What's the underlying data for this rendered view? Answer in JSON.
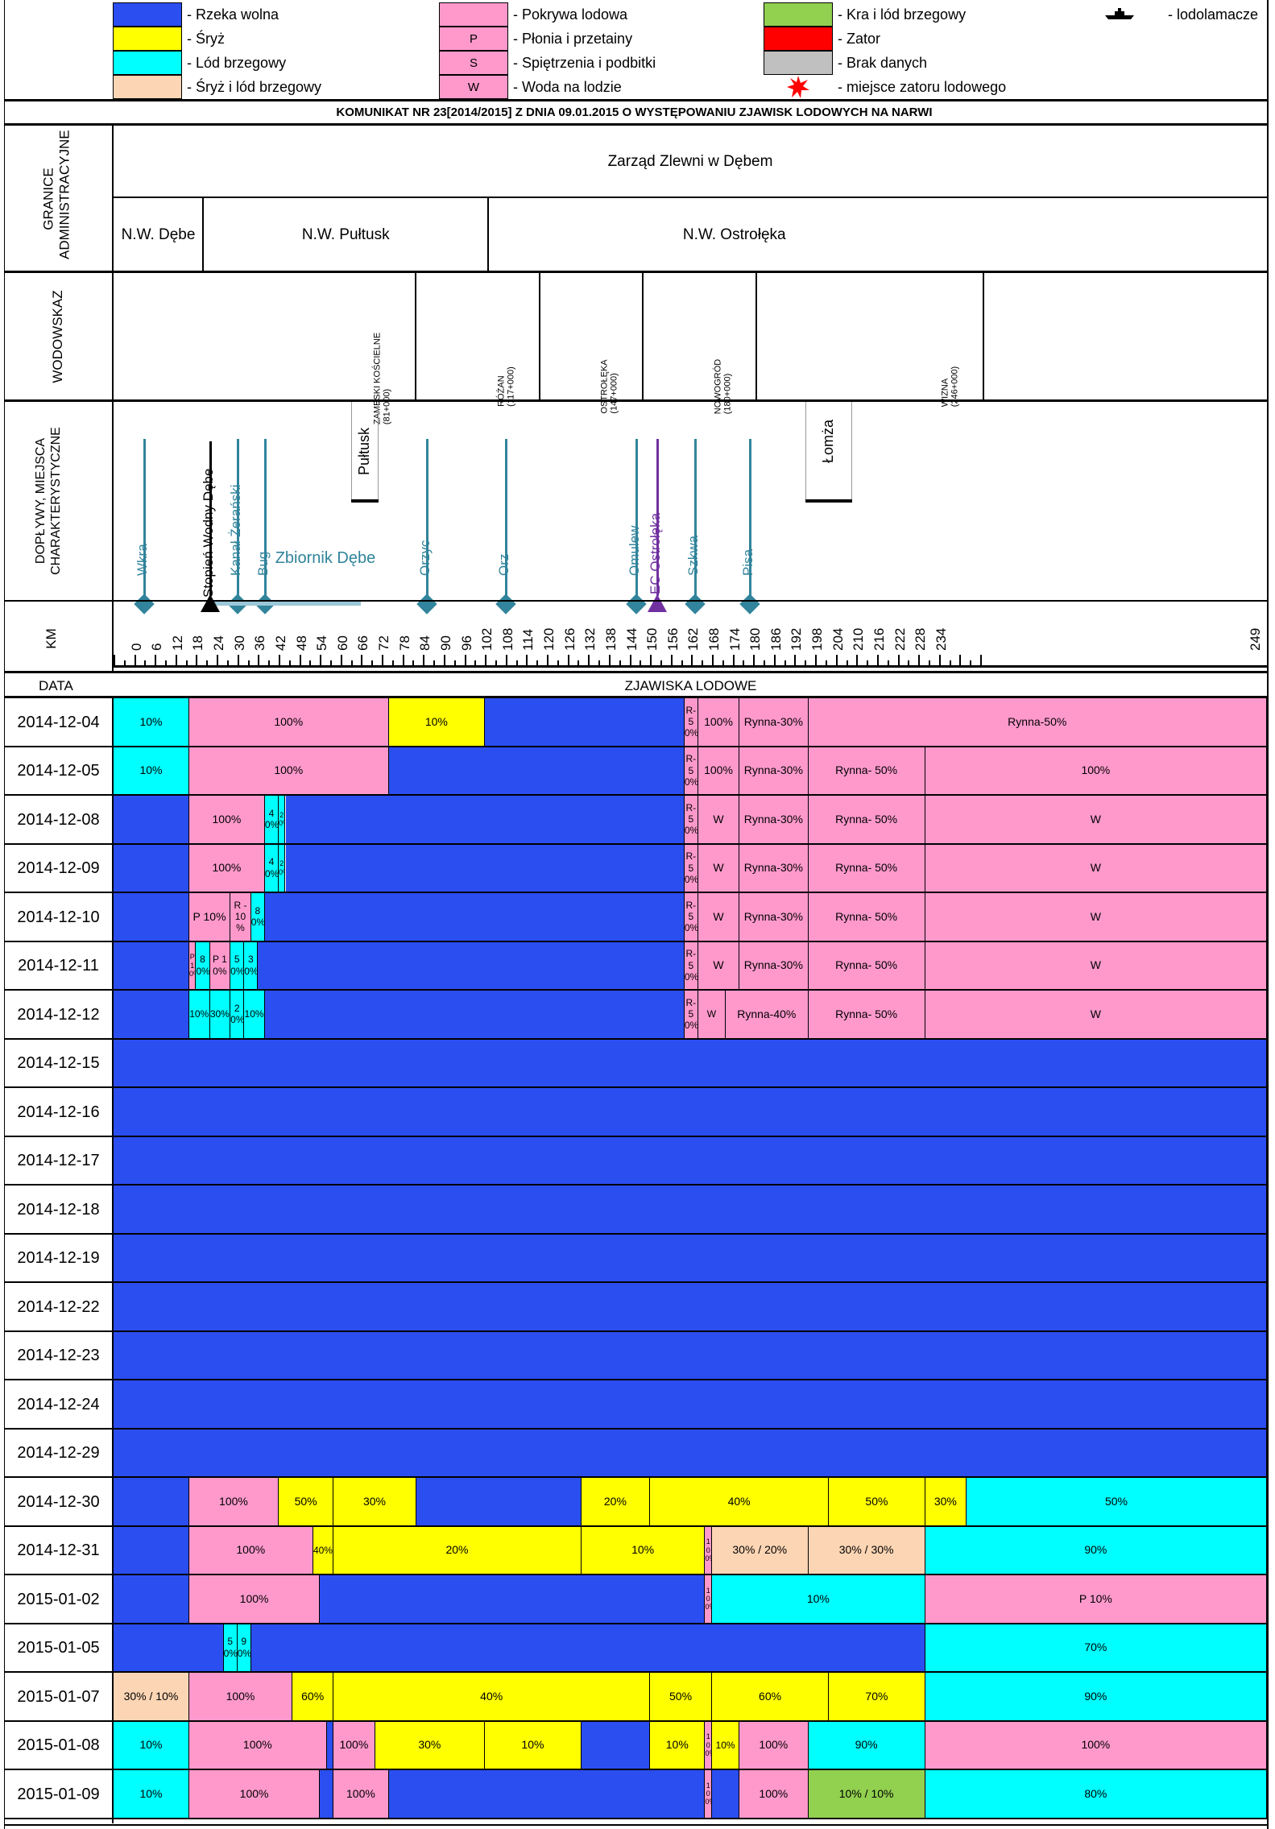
{
  "legend": {
    "items": [
      {
        "swatch": "#2b4ef0",
        "text": "- Rzeka wolna",
        "mark": ""
      },
      {
        "swatch": "#ffff00",
        "text": "- Śryż",
        "mark": ""
      },
      {
        "swatch": "#00ffff",
        "text": "- Lód brzegowy",
        "mark": ""
      },
      {
        "swatch": "#fcd5b4",
        "text": "- Śryż i lód brzegowy",
        "mark": ""
      },
      {
        "swatch": "#ff99cc",
        "text": "- Pokrywa lodowa",
        "mark": ""
      },
      {
        "swatch": "#ff99cc",
        "text": "- Płonia i przetainy",
        "mark": "P"
      },
      {
        "swatch": "#ff99cc",
        "text": "- Spiętrzenia i podbitki",
        "mark": "S"
      },
      {
        "swatch": "#ff99cc",
        "text": "- Woda na lodzie",
        "mark": "W"
      },
      {
        "swatch": "#92d050",
        "text": "- Kra i lód brzegowy",
        "mark": ""
      },
      {
        "swatch": "#ff0000",
        "text": "- Zator",
        "mark": ""
      },
      {
        "swatch": "#c0c0c0",
        "text": "- Brak danych",
        "mark": ""
      },
      {
        "swatch": "",
        "text": "- miejsce zatoru lodowego",
        "mark": "star-icon"
      },
      {
        "swatch": "",
        "text": "- lodolamacze",
        "mark": "icebreaker-icon"
      }
    ]
  },
  "title": "KOMUNIKAT NR 23[2014/2015] Z DNIA 09.01.2015 O WYSTĘPOWANIU ZJAWISK LODOWYCH NA NARWI",
  "headers": {
    "admin": "GRANICE ADMINISTRACYJNE",
    "gauge": "WODOWSKAZ",
    "features": "DOPŁYWY, MIEJSCA CHARAKTERYSTYCZNE",
    "km": "KM",
    "date": "DATA",
    "phenomena": "ZJAWISKA LODOWE"
  },
  "admin": {
    "top": "Zarząd Zlewni w Dębem",
    "units": [
      {
        "name": "N.W. Dębe",
        "km_from": -6,
        "km_to": 20
      },
      {
        "name": "N.W. Pułtusk",
        "km_from": 20,
        "km_to": 103
      },
      {
        "name": "N.W. Ostrołęka",
        "km_from": 103,
        "km_to": 246
      }
    ]
  },
  "gauges": [
    {
      "name": "ZAMBSKI KOŚCIELNE",
      "km_label": "(81+000)",
      "km": 81
    },
    {
      "name": "RÓŻAN",
      "km_label": "(117+000)",
      "km": 117
    },
    {
      "name": "OSTROŁĘKA",
      "km_label": "(147+000)",
      "km": 147
    },
    {
      "name": "NOWOGRÓD",
      "km_label": "(180+000)",
      "km": 180
    },
    {
      "name": "WIZNA",
      "km_label": "(246+000)",
      "km": 246
    }
  ],
  "features": {
    "tributaries": [
      {
        "name": "Wkra",
        "km": 3
      },
      {
        "name": "Kanał Żerański",
        "km": 30
      },
      {
        "name": "Bug",
        "km": 38
      },
      {
        "name": "Orzyc",
        "km": 85
      },
      {
        "name": "Orz",
        "km": 108
      },
      {
        "name": "Omulew",
        "km": 146
      },
      {
        "name": "Szkwa",
        "km": 163
      },
      {
        "name": "Pisa",
        "km": 179
      }
    ],
    "dam": {
      "name": "Stopień Wodny Dębe",
      "km": 22
    },
    "plant": {
      "name": "EC Ostrołęka",
      "km": 152
    },
    "reservoir": {
      "name": "Zbiornik Dębe",
      "km_from": 22,
      "km_to": 66
    },
    "cities": [
      {
        "name": "Pułtusk",
        "km": 67
      },
      {
        "name": "Łomża",
        "km": 202
      }
    ]
  },
  "km_axis": {
    "ticks": [
      0,
      6,
      12,
      18,
      24,
      30,
      36,
      42,
      48,
      54,
      60,
      66,
      72,
      78,
      84,
      90,
      96,
      102,
      108,
      114,
      120,
      126,
      132,
      138,
      144,
      150,
      156,
      162,
      168,
      174,
      180,
      186,
      192,
      198,
      204,
      210,
      216,
      222,
      228,
      234,
      249
    ],
    "min": -6,
    "max": 250
  },
  "colors": {
    "free": "#2b4ef0",
    "sryz": "#ffff00",
    "shore": "#00ffff",
    "sryz_shore": "#fcd5b4",
    "cover": "#ff99cc",
    "floe": "#92d050",
    "jam": "#ff0000",
    "nodata": "#c0c0c0",
    "tributary": "#31849b",
    "plant": "#7030a0"
  },
  "rows": [
    {
      "date": "2014-12-04",
      "segs": [
        [
          -6,
          16,
          "shore",
          "10%"
        ],
        [
          16,
          74,
          "cover",
          "100%"
        ],
        [
          74,
          102,
          "sryz",
          "10%"
        ],
        [
          102,
          160,
          "free",
          ""
        ],
        [
          160,
          164,
          "cover",
          "R-50%"
        ],
        [
          164,
          176,
          "cover",
          "100%"
        ],
        [
          176,
          196,
          "cover",
          "Rynna-30%"
        ],
        [
          196,
          244,
          "cover",
          "Rynna-50%"
        ]
      ]
    },
    {
      "date": "2014-12-05",
      "segs": [
        [
          -6,
          16,
          "shore",
          "10%"
        ],
        [
          16,
          74,
          "cover",
          "100%"
        ],
        [
          74,
          160,
          "free",
          ""
        ],
        [
          160,
          164,
          "cover",
          "R-50%"
        ],
        [
          164,
          176,
          "cover",
          "100%"
        ],
        [
          176,
          196,
          "cover",
          "Rynna-30%"
        ],
        [
          196,
          230,
          "cover",
          "Rynna- 50%"
        ],
        [
          230,
          244,
          "cover",
          "100%"
        ]
      ]
    },
    {
      "date": "2014-12-08",
      "segs": [
        [
          -6,
          16,
          "free",
          ""
        ],
        [
          16,
          38,
          "cover",
          "100%"
        ],
        [
          38,
          42,
          "shore",
          "40%"
        ],
        [
          42,
          44,
          "shore",
          "20%"
        ],
        [
          44,
          160,
          "free",
          ""
        ],
        [
          160,
          164,
          "cover",
          "R-50%"
        ],
        [
          164,
          176,
          "cover",
          "W"
        ],
        [
          176,
          196,
          "cover",
          "Rynna-30%"
        ],
        [
          196,
          230,
          "cover",
          "Rynna- 50%"
        ],
        [
          230,
          244,
          "cover",
          "W"
        ]
      ]
    },
    {
      "date": "2014-12-09",
      "segs": [
        [
          -6,
          16,
          "free",
          ""
        ],
        [
          16,
          38,
          "cover",
          "100%"
        ],
        [
          38,
          42,
          "shore",
          "40%"
        ],
        [
          42,
          44,
          "shore",
          "20%"
        ],
        [
          44,
          160,
          "free",
          ""
        ],
        [
          160,
          164,
          "cover",
          "R-50%"
        ],
        [
          164,
          176,
          "cover",
          "W"
        ],
        [
          176,
          196,
          "cover",
          "Rynna-30%"
        ],
        [
          196,
          230,
          "cover",
          "Rynna- 50%"
        ],
        [
          230,
          244,
          "cover",
          "W"
        ]
      ]
    },
    {
      "date": "2014-12-10",
      "segs": [
        [
          -6,
          16,
          "free",
          ""
        ],
        [
          16,
          28,
          "cover",
          "P 10%"
        ],
        [
          28,
          34,
          "cover",
          "R - 10 %"
        ],
        [
          34,
          38,
          "shore",
          "80%"
        ],
        [
          38,
          160,
          "free",
          ""
        ],
        [
          160,
          164,
          "cover",
          "R-50%"
        ],
        [
          164,
          176,
          "cover",
          "W"
        ],
        [
          176,
          196,
          "cover",
          "Rynna-30%"
        ],
        [
          196,
          230,
          "cover",
          "Rynna- 50%"
        ],
        [
          230,
          244,
          "cover",
          "W"
        ]
      ]
    },
    {
      "date": "2014-12-11",
      "segs": [
        [
          -6,
          16,
          "free",
          ""
        ],
        [
          16,
          18,
          "cover",
          "P 10%"
        ],
        [
          18,
          22,
          "shore",
          "80%"
        ],
        [
          22,
          28,
          "cover",
          "P 10%"
        ],
        [
          28,
          32,
          "shore",
          "50%"
        ],
        [
          32,
          36,
          "shore",
          "30%"
        ],
        [
          36,
          160,
          "free",
          ""
        ],
        [
          160,
          164,
          "cover",
          "R-50%"
        ],
        [
          164,
          176,
          "cover",
          "W"
        ],
        [
          176,
          196,
          "cover",
          "Rynna-30%"
        ],
        [
          196,
          230,
          "cover",
          "Rynna- 50%"
        ],
        [
          230,
          244,
          "cover",
          "W"
        ]
      ]
    },
    {
      "date": "2014-12-12",
      "segs": [
        [
          -6,
          16,
          "free",
          ""
        ],
        [
          16,
          22,
          "shore",
          "10%"
        ],
        [
          22,
          28,
          "shore",
          "30%"
        ],
        [
          28,
          32,
          "shore",
          "20%"
        ],
        [
          32,
          38,
          "shore",
          "10%"
        ],
        [
          38,
          160,
          "free",
          ""
        ],
        [
          160,
          164,
          "cover",
          "R-50%"
        ],
        [
          164,
          172,
          "cover",
          "W"
        ],
        [
          172,
          196,
          "cover",
          "Rynna-40%"
        ],
        [
          196,
          230,
          "cover",
          "Rynna- 50%"
        ],
        [
          230,
          244,
          "cover",
          "W"
        ]
      ]
    },
    {
      "date": "2014-12-15",
      "segs": [
        [
          -6,
          244,
          "free",
          ""
        ]
      ]
    },
    {
      "date": "2014-12-16",
      "segs": [
        [
          -6,
          244,
          "free",
          ""
        ]
      ]
    },
    {
      "date": "2014-12-17",
      "segs": [
        [
          -6,
          244,
          "free",
          ""
        ]
      ]
    },
    {
      "date": "2014-12-18",
      "segs": [
        [
          -6,
          244,
          "free",
          ""
        ]
      ]
    },
    {
      "date": "2014-12-19",
      "segs": [
        [
          -6,
          244,
          "free",
          ""
        ]
      ]
    },
    {
      "date": "2014-12-22",
      "segs": [
        [
          -6,
          244,
          "free",
          ""
        ]
      ]
    },
    {
      "date": "2014-12-23",
      "segs": [
        [
          -6,
          244,
          "free",
          ""
        ]
      ]
    },
    {
      "date": "2014-12-24",
      "segs": [
        [
          -6,
          244,
          "free",
          ""
        ]
      ]
    },
    {
      "date": "2014-12-29",
      "segs": [
        [
          -6,
          244,
          "free",
          ""
        ]
      ]
    },
    {
      "date": "2014-12-30",
      "segs": [
        [
          -6,
          16,
          "free",
          ""
        ],
        [
          16,
          42,
          "cover",
          "100%"
        ],
        [
          42,
          58,
          "sryz",
          "50%"
        ],
        [
          58,
          82,
          "sryz",
          "30%"
        ],
        [
          82,
          130,
          "free",
          ""
        ],
        [
          130,
          150,
          "sryz",
          "20%"
        ],
        [
          150,
          202,
          "sryz",
          "40%"
        ],
        [
          202,
          230,
          "sryz",
          "50%"
        ],
        [
          230,
          242,
          "sryz",
          "30%"
        ],
        [
          242,
          244,
          "shore",
          "50%"
        ]
      ]
    },
    {
      "date": "2014-12-31",
      "segs": [
        [
          -6,
          16,
          "free",
          ""
        ],
        [
          16,
          52,
          "cover",
          "100%"
        ],
        [
          52,
          58,
          "sryz",
          "40%"
        ],
        [
          58,
          130,
          "sryz",
          "20%"
        ],
        [
          130,
          166,
          "sryz",
          "10%"
        ],
        [
          166,
          168,
          "cover",
          "100%"
        ],
        [
          168,
          196,
          "sryz_shore",
          "30% / 20%"
        ],
        [
          196,
          230,
          "sryz_shore",
          "30% / 30%"
        ],
        [
          230,
          244,
          "shore",
          "90%"
        ]
      ]
    },
    {
      "date": "2015-01-02",
      "segs": [
        [
          -6,
          16,
          "free",
          ""
        ],
        [
          16,
          54,
          "cover",
          "100%"
        ],
        [
          54,
          166,
          "free",
          ""
        ],
        [
          166,
          168,
          "cover",
          "100%"
        ],
        [
          168,
          230,
          "shore",
          "10%"
        ],
        [
          230,
          244,
          "cover",
          "P 10%"
        ]
      ]
    },
    {
      "date": "2015-01-05",
      "segs": [
        [
          -6,
          26,
          "free",
          ""
        ],
        [
          26,
          30,
          "shore",
          "50%"
        ],
        [
          30,
          34,
          "shore",
          "90%"
        ],
        [
          34,
          230,
          "free",
          ""
        ],
        [
          230,
          244,
          "shore",
          "70%"
        ]
      ]
    },
    {
      "date": "2015-01-07",
      "segs": [
        [
          -6,
          16,
          "sryz_shore",
          "30% / 10%"
        ],
        [
          16,
          46,
          "cover",
          "100%"
        ],
        [
          46,
          58,
          "sryz",
          "60%"
        ],
        [
          58,
          150,
          "sryz",
          "40%"
        ],
        [
          150,
          168,
          "sryz",
          "50%"
        ],
        [
          168,
          202,
          "sryz",
          "60%"
        ],
        [
          202,
          230,
          "sryz",
          "70%"
        ],
        [
          230,
          244,
          "shore",
          "90%"
        ]
      ]
    },
    {
      "date": "2015-01-08",
      "segs": [
        [
          -6,
          16,
          "shore",
          "10%"
        ],
        [
          16,
          56,
          "cover",
          "100%"
        ],
        [
          56,
          58,
          "free",
          ""
        ],
        [
          58,
          70,
          "cover",
          "100%"
        ],
        [
          70,
          102,
          "sryz",
          "30%"
        ],
        [
          102,
          130,
          "sryz",
          "10%"
        ],
        [
          130,
          150,
          "free",
          ""
        ],
        [
          150,
          166,
          "sryz",
          "10%"
        ],
        [
          166,
          168,
          "cover",
          "100%"
        ],
        [
          168,
          176,
          "sryz",
          "10%"
        ],
        [
          176,
          196,
          "cover",
          "100%"
        ],
        [
          196,
          230,
          "shore",
          "90%"
        ],
        [
          230,
          244,
          "cover",
          "100%"
        ]
      ]
    },
    {
      "date": "2015-01-09",
      "segs": [
        [
          -6,
          16,
          "shore",
          "10%"
        ],
        [
          16,
          54,
          "cover",
          "100%"
        ],
        [
          54,
          58,
          "free",
          ""
        ],
        [
          58,
          74,
          "cover",
          "100%"
        ],
        [
          74,
          166,
          "free",
          ""
        ],
        [
          166,
          168,
          "cover",
          "100%"
        ],
        [
          168,
          176,
          "free",
          ""
        ],
        [
          176,
          196,
          "cover",
          "100%"
        ],
        [
          196,
          230,
          "floe",
          "10% / 10%"
        ],
        [
          230,
          244,
          "shore",
          "80%"
        ]
      ]
    }
  ]
}
